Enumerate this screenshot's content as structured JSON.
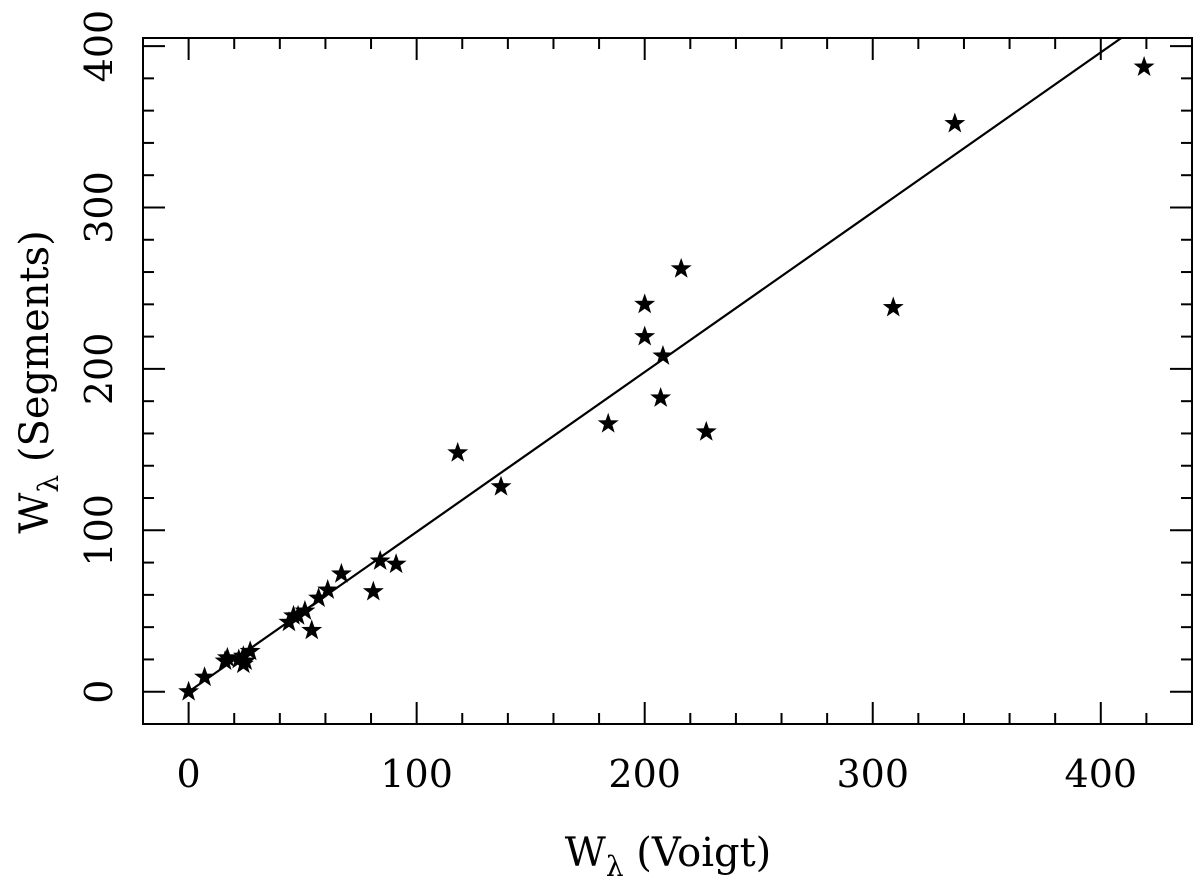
{
  "chart_data": {
    "type": "scatter",
    "xlabel": {
      "main": "W",
      "sub": "λ",
      "rest": " (Voigt)"
    },
    "ylabel": {
      "main": "W",
      "sub": "λ",
      "rest": " (Segments)"
    },
    "xlim": [
      -20,
      440
    ],
    "ylim": [
      -20,
      405
    ],
    "x_ticks": [
      0,
      100,
      200,
      300,
      400
    ],
    "y_ticks": [
      0,
      100,
      200,
      300,
      400
    ],
    "x_tick_labels": [
      "0",
      "100",
      "200",
      "300",
      "400"
    ],
    "y_tick_labels": [
      "0",
      "100",
      "200",
      "300",
      "400"
    ],
    "x_minor_step": 20,
    "y_minor_step": 20,
    "grid": false,
    "marker": "star",
    "colors": {
      "marker": "#000000",
      "line": "#000000",
      "axes": "#000000"
    },
    "points": [
      {
        "x": 0,
        "y": 0
      },
      {
        "x": 7,
        "y": 9
      },
      {
        "x": 16,
        "y": 19
      },
      {
        "x": 17,
        "y": 21
      },
      {
        "x": 22,
        "y": 20
      },
      {
        "x": 24,
        "y": 22
      },
      {
        "x": 24,
        "y": 17
      },
      {
        "x": 25,
        "y": 19
      },
      {
        "x": 27,
        "y": 25
      },
      {
        "x": 44,
        "y": 43
      },
      {
        "x": 46,
        "y": 47
      },
      {
        "x": 48,
        "y": 47
      },
      {
        "x": 51,
        "y": 50
      },
      {
        "x": 54,
        "y": 38
      },
      {
        "x": 57,
        "y": 58
      },
      {
        "x": 61,
        "y": 63
      },
      {
        "x": 67,
        "y": 73
      },
      {
        "x": 81,
        "y": 62
      },
      {
        "x": 84,
        "y": 81
      },
      {
        "x": 91,
        "y": 79
      },
      {
        "x": 118,
        "y": 148
      },
      {
        "x": 137,
        "y": 127
      },
      {
        "x": 184,
        "y": 166
      },
      {
        "x": 200,
        "y": 240
      },
      {
        "x": 200,
        "y": 220
      },
      {
        "x": 208,
        "y": 208
      },
      {
        "x": 207,
        "y": 182
      },
      {
        "x": 216,
        "y": 262
      },
      {
        "x": 227,
        "y": 161
      },
      {
        "x": 309,
        "y": 238
      },
      {
        "x": 336,
        "y": 352
      },
      {
        "x": 419,
        "y": 387
      }
    ],
    "fit_line": {
      "x": [
        0,
        410
      ],
      "y": [
        0,
        406
      ]
    }
  }
}
